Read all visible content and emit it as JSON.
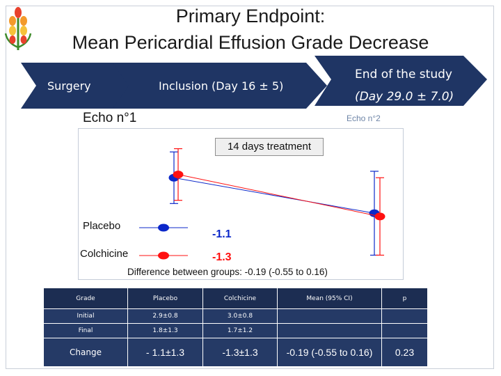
{
  "title_line1": "Primary Endpoint:",
  "title_line2": "Mean Pericardial Effusion Grade Decrease",
  "colors": {
    "arrow": "#1f3564",
    "placebo": "#0b27c9",
    "colchicine": "#ff1010",
    "table_header": "#1c2d52",
    "table_body": "#253a66"
  },
  "timeline": {
    "surgery": "Surgery",
    "inclusion": "Inclusion (Day 16 ± 5)",
    "end_line1": "End of the study",
    "end_line2": "(Day 29.0  ± 7.0)"
  },
  "echo1": "Echo n°1",
  "echo2": "Echo n°2",
  "chart_data": {
    "type": "line",
    "annotation": "14 days treatment",
    "series": [
      {
        "name": "Placebo",
        "change_label": "-1.1",
        "points": [
          {
            "mean": 2.9,
            "sd": 0.8
          },
          {
            "mean": 1.8,
            "sd": 1.3
          }
        ]
      },
      {
        "name": "Colchicine",
        "change_label": "-1.3",
        "points": [
          {
            "mean": 3.0,
            "sd": 0.8
          },
          {
            "mean": 1.7,
            "sd": 1.2
          }
        ]
      }
    ],
    "ylim": [
      0.1,
      4.2
    ],
    "difference_text": "Difference between groups: -0.19 (-0.55 to 0.16)"
  },
  "table": {
    "headers": [
      "Grade",
      "Placebo",
      "Colchicine",
      "Mean (95% CI)",
      "p"
    ],
    "rows": [
      [
        "Initial",
        "2.9±0.8",
        "3.0±0.8",
        "",
        ""
      ],
      [
        "Final",
        "1.8±1.3",
        "1.7±1.2",
        "",
        ""
      ],
      [
        "Change",
        "- 1.1±1.3",
        "-1.3±1.3",
        "-0.19 (-0.55 to 0.16)",
        "0.23"
      ]
    ]
  }
}
